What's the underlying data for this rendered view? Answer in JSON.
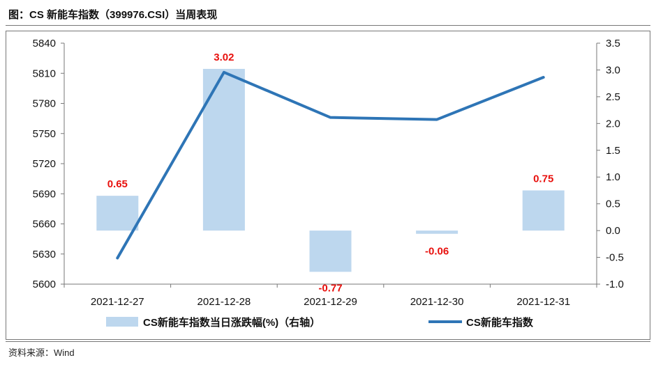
{
  "title": "图：CS 新能车指数（399976.CSI）当周表现",
  "source": "资料来源：Wind",
  "colors": {
    "bar": "#bdd7ee",
    "line": "#2e75b6",
    "label": "#e8100d",
    "axis": "#777777",
    "text": "#111111"
  },
  "chart_data": {
    "type": "bar+line",
    "categories": [
      "2021-12-27",
      "2021-12-28",
      "2021-12-29",
      "2021-12-30",
      "2021-12-31"
    ],
    "series": [
      {
        "name": "CS新能车指数当日涨跌幅(%)（右轴）",
        "type": "bar",
        "axis": "right",
        "values": [
          0.65,
          3.02,
          -0.77,
          -0.06,
          0.75
        ]
      },
      {
        "name": "CS新能车指数",
        "type": "line",
        "axis": "left",
        "values": [
          5626,
          5811,
          5766,
          5764,
          5806
        ]
      }
    ],
    "data_labels": [
      "0.65",
      "3.02",
      "-0.77",
      "-0.06",
      "0.75"
    ],
    "left_axis": {
      "min": 5600,
      "max": 5840,
      "ticks": [
        "5600",
        "5630",
        "5660",
        "5690",
        "5720",
        "5750",
        "5780",
        "5810",
        "5840"
      ]
    },
    "right_axis": {
      "min": -1.0,
      "max": 3.5,
      "ticks": [
        "-1.0",
        "-0.5",
        "0.0",
        "0.5",
        "1.0",
        "1.5",
        "2.0",
        "2.5",
        "3.0",
        "3.5"
      ]
    },
    "grid": false,
    "legend_position": "bottom"
  }
}
